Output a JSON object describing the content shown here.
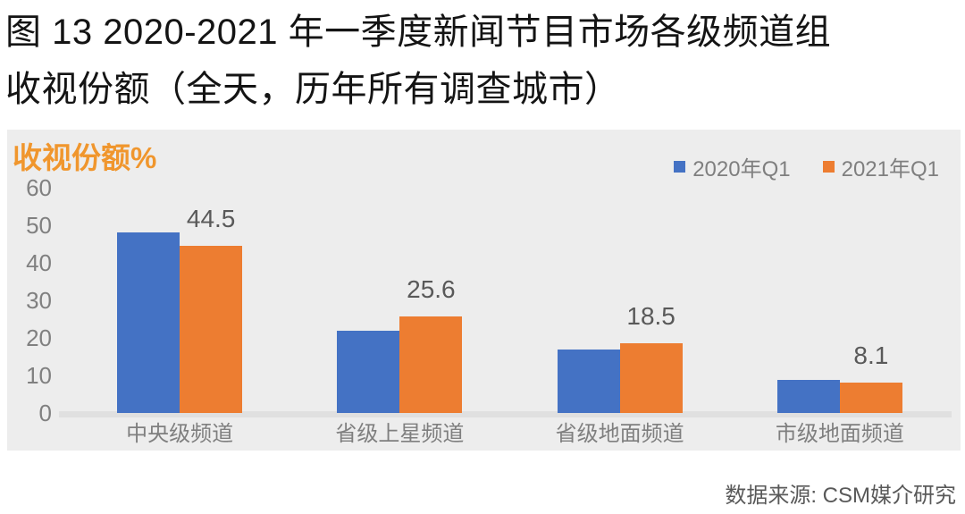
{
  "title": {
    "line1": "图 13 2020-2021 年一季度新闻节目市场各级频道组",
    "line2": "收视份额（全天，历年所有调查城市）"
  },
  "source": "数据来源: CSM媒介研究",
  "colors": {
    "series_blue": "#4472C4",
    "series_orange": "#ED7D31",
    "y_axis_title_text": "#F0962D",
    "chart_background": "#EDEDED",
    "axis_line": "#E0E0E0",
    "tick_text": "#808080",
    "data_label_text": "#595959",
    "title_text": "#141414"
  },
  "chart_data": {
    "type": "bar",
    "title": "图 13 2020-2021 年一季度新闻节目市场各级频道组收视份额（全天，历年所有调查城市）",
    "ylabel": "收视份额%",
    "xlabel": "",
    "categories": [
      "中央级频道",
      "省级上星频道",
      "省级地面频道",
      "市级地面频道"
    ],
    "series": [
      {
        "name": "2020年Q1",
        "color": "#4472C4",
        "values": [
          48.0,
          22.0,
          17.0,
          8.8
        ],
        "labels": null
      },
      {
        "name": "2021年Q1",
        "color": "#ED7D31",
        "values": [
          44.5,
          25.6,
          18.5,
          8.1
        ],
        "labels": [
          "44.5",
          "25.6",
          "18.5",
          "8.1"
        ]
      }
    ],
    "ylim": [
      0,
      60
    ],
    "yticks": [
      0,
      10,
      20,
      30,
      40,
      50,
      60
    ],
    "grid": false,
    "legend_position": "top-right",
    "source_note": "数据来源: CSM媒介研究"
  }
}
